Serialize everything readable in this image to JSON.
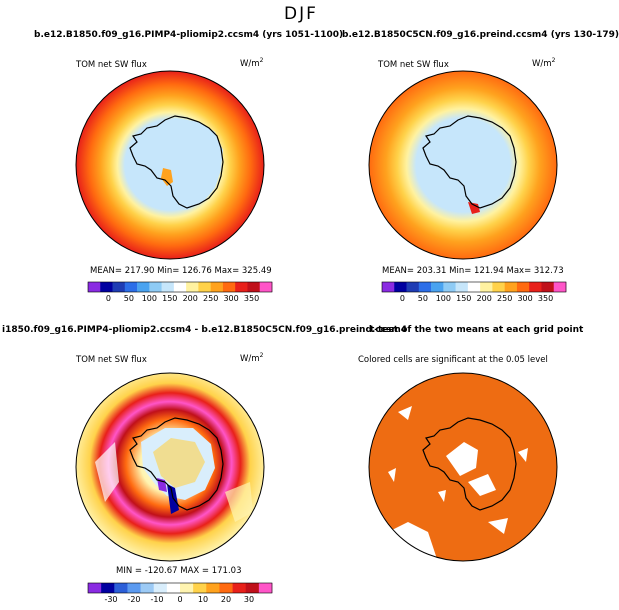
{
  "title": "DJF",
  "panels": [
    {
      "id": "tl",
      "title": "b.e12.B1850.f09_g16.PIMP4-pliomip2.ccsm4 (yrs 1051-1100)",
      "field": "TOM net SW flux",
      "units": "W/m",
      "units_exp": "2",
      "stats": "MEAN= 217.90   Min= 126.76   Max= 325.49",
      "colorbar": {
        "labels": [
          "0",
          "50",
          "100",
          "150",
          "200",
          "250",
          "300",
          "350"
        ],
        "colors": [
          "#8a2be2",
          "#0000a0",
          "#1e3cb4",
          "#2c6ee8",
          "#4aa3f0",
          "#8ecbf5",
          "#c6e6fb",
          "#ffffff",
          "#fff2a0",
          "#ffd24a",
          "#ffa21e",
          "#ff6a10",
          "#e8201a",
          "#c0101a",
          "#ff55c8"
        ]
      }
    },
    {
      "id": "tr",
      "title": "b.e12.B1850C5CN.f09_g16.preind.ccsm4 (yrs 130-179)",
      "field": "TOM net SW flux",
      "units": "W/m",
      "units_exp": "2",
      "stats": "MEAN= 203.31   Min= 121.94   Max= 312.73",
      "colorbar": {
        "labels": [
          "0",
          "50",
          "100",
          "150",
          "200",
          "250",
          "300",
          "350"
        ],
        "colors": [
          "#8a2be2",
          "#0000a0",
          "#1e3cb4",
          "#2c6ee8",
          "#4aa3f0",
          "#8ecbf5",
          "#c6e6fb",
          "#ffffff",
          "#fff2a0",
          "#ffd24a",
          "#ffa21e",
          "#ff6a10",
          "#e8201a",
          "#c0101a",
          "#ff55c8"
        ]
      }
    },
    {
      "id": "bl",
      "title": "i1850.f09_g16.PIMP4-pliomip2.ccsm4 - b.e12.B1850C5CN.f09_g16.preind.ccsm4",
      "field": "TOM net SW flux",
      "units": "W/m",
      "units_exp": "2",
      "stats": "MIN = -120.67  MAX = 171.03",
      "colorbar": {
        "labels": [
          "-30",
          "-20",
          "-10",
          "0",
          "10",
          "20",
          "30"
        ],
        "colors": [
          "#8a2be2",
          "#0000a0",
          "#2c5fd8",
          "#5b9af0",
          "#9ccaf5",
          "#d9eefc",
          "#ffffff",
          "#fff4b0",
          "#ffd24a",
          "#ffa21e",
          "#ff6a10",
          "#e8201a",
          "#c0101a",
          "#ff55c8"
        ]
      }
    },
    {
      "id": "br",
      "title": "t-test of the two means at each grid point",
      "note": "Colored cells are significant at the 0.05 level"
    }
  ]
}
